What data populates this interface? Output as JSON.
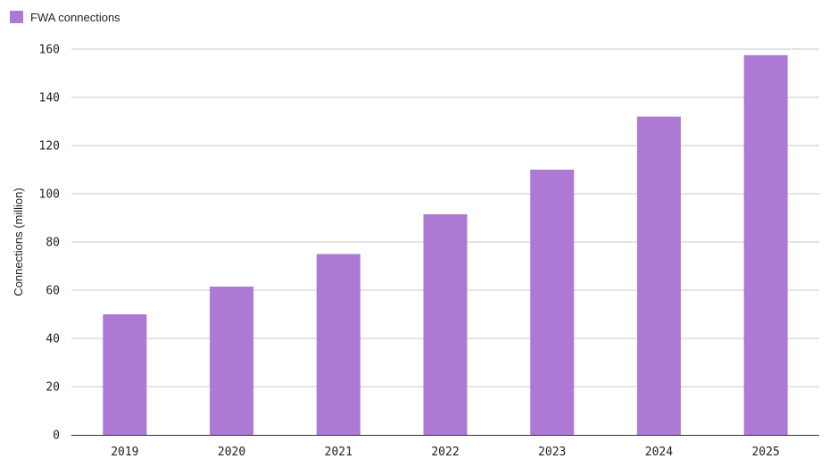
{
  "chart_data": {
    "type": "bar",
    "title": "",
    "xlabel": "",
    "ylabel": "Connections (million)",
    "categories": [
      "2019",
      "2020",
      "2021",
      "2022",
      "2023",
      "2024",
      "2025"
    ],
    "series": [
      {
        "name": "FWA connections",
        "color": "#ad79d4",
        "values": [
          50,
          61.5,
          75,
          91.5,
          110,
          132,
          157.5
        ]
      }
    ],
    "ylim": [
      0,
      160
    ],
    "yticks": [
      0,
      20,
      40,
      60,
      80,
      100,
      120,
      140,
      160
    ],
    "grid": true,
    "legend_position": "top-left"
  }
}
